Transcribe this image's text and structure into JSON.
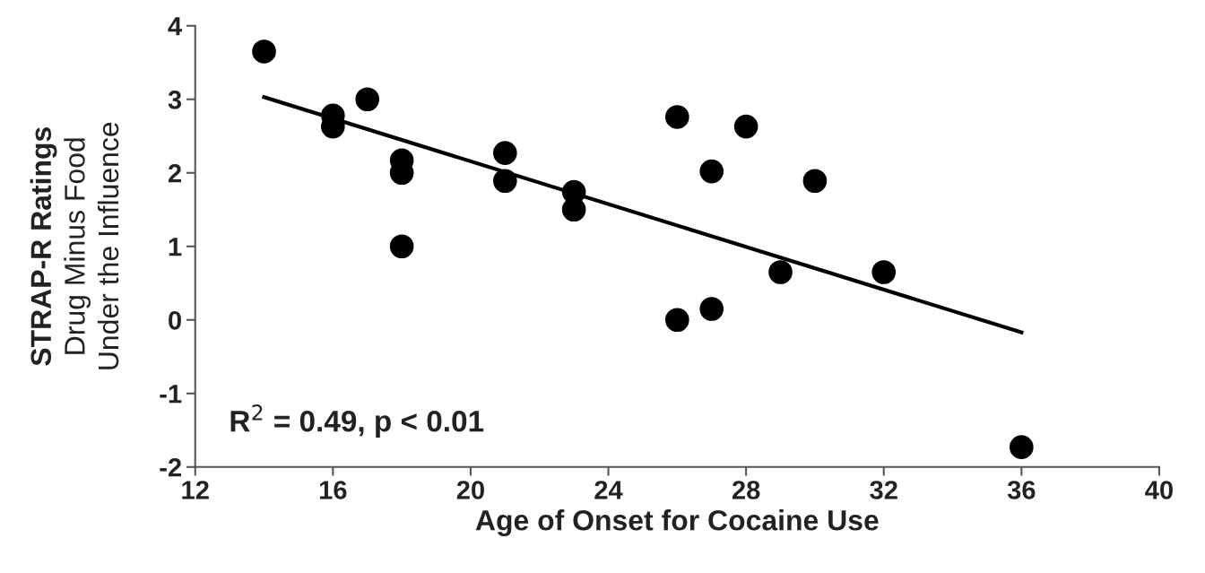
{
  "chart_data": {
    "type": "scatter",
    "xlabel": "Age of Onset for Cocaine Use",
    "ylabel": "STRAP-R Ratings\nDrug Minus Food\nUnder the Influence",
    "series": [
      {
        "color": "#000000",
        "marker": "circle",
        "x": [
          14,
          16,
          16,
          17,
          18,
          18,
          18,
          21,
          21,
          23,
          23,
          26,
          26,
          27,
          27,
          28,
          29,
          30,
          32,
          36
        ],
        "values": [
          3.65,
          2.78,
          2.63,
          3.0,
          2.17,
          2.0,
          1.0,
          2.27,
          1.89,
          1.74,
          1.5,
          2.76,
          0.0,
          2.02,
          0.15,
          2.63,
          0.65,
          1.89,
          0.65,
          -1.73
        ]
      },
      {
        "type": "line",
        "color": "#000000",
        "marker": "none",
        "line_style": "solid",
        "x": [
          14,
          36
        ],
        "values": [
          3.03,
          -0.17
        ]
      }
    ],
    "annotations": [
      "R$^{2}$ = 0.49, p < 0.01"
    ],
    "xlim": [
      12,
      40
    ],
    "xticks": [
      12,
      16,
      20,
      24,
      28,
      32,
      36,
      40
    ],
    "ylim": [
      -2,
      4
    ],
    "yticks": [
      -2,
      -1,
      0,
      1,
      2,
      3,
      4
    ],
    "grid": false,
    "legend": false
  }
}
